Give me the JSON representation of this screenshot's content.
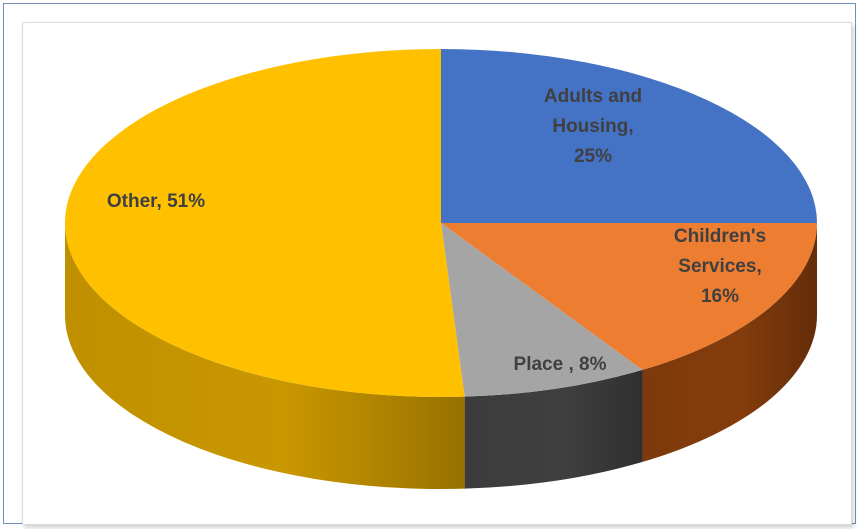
{
  "chart_data": {
    "type": "pie",
    "title": "",
    "slices": [
      {
        "label": "Adults and Housing, 25%",
        "lines": [
          "Adults and",
          "Housing,",
          "25%"
        ],
        "value": 25,
        "color": "#4472C4",
        "side": "#2F5597"
      },
      {
        "label": "Children's Services, 16%",
        "lines": [
          "Children's",
          "Services,",
          "16%"
        ],
        "value": 16,
        "color": "#ED7D31",
        "side": "#843C0C"
      },
      {
        "label": "Place , 8%",
        "lines": [
          "Place , 8%"
        ],
        "value": 8,
        "color": "#A5A5A5",
        "side": "#3F3F3F"
      },
      {
        "label": "Other, 51%",
        "lines": [
          "Other, 51%"
        ],
        "value": 51,
        "color": "#FFC000",
        "side": "#C99700"
      }
    ]
  }
}
